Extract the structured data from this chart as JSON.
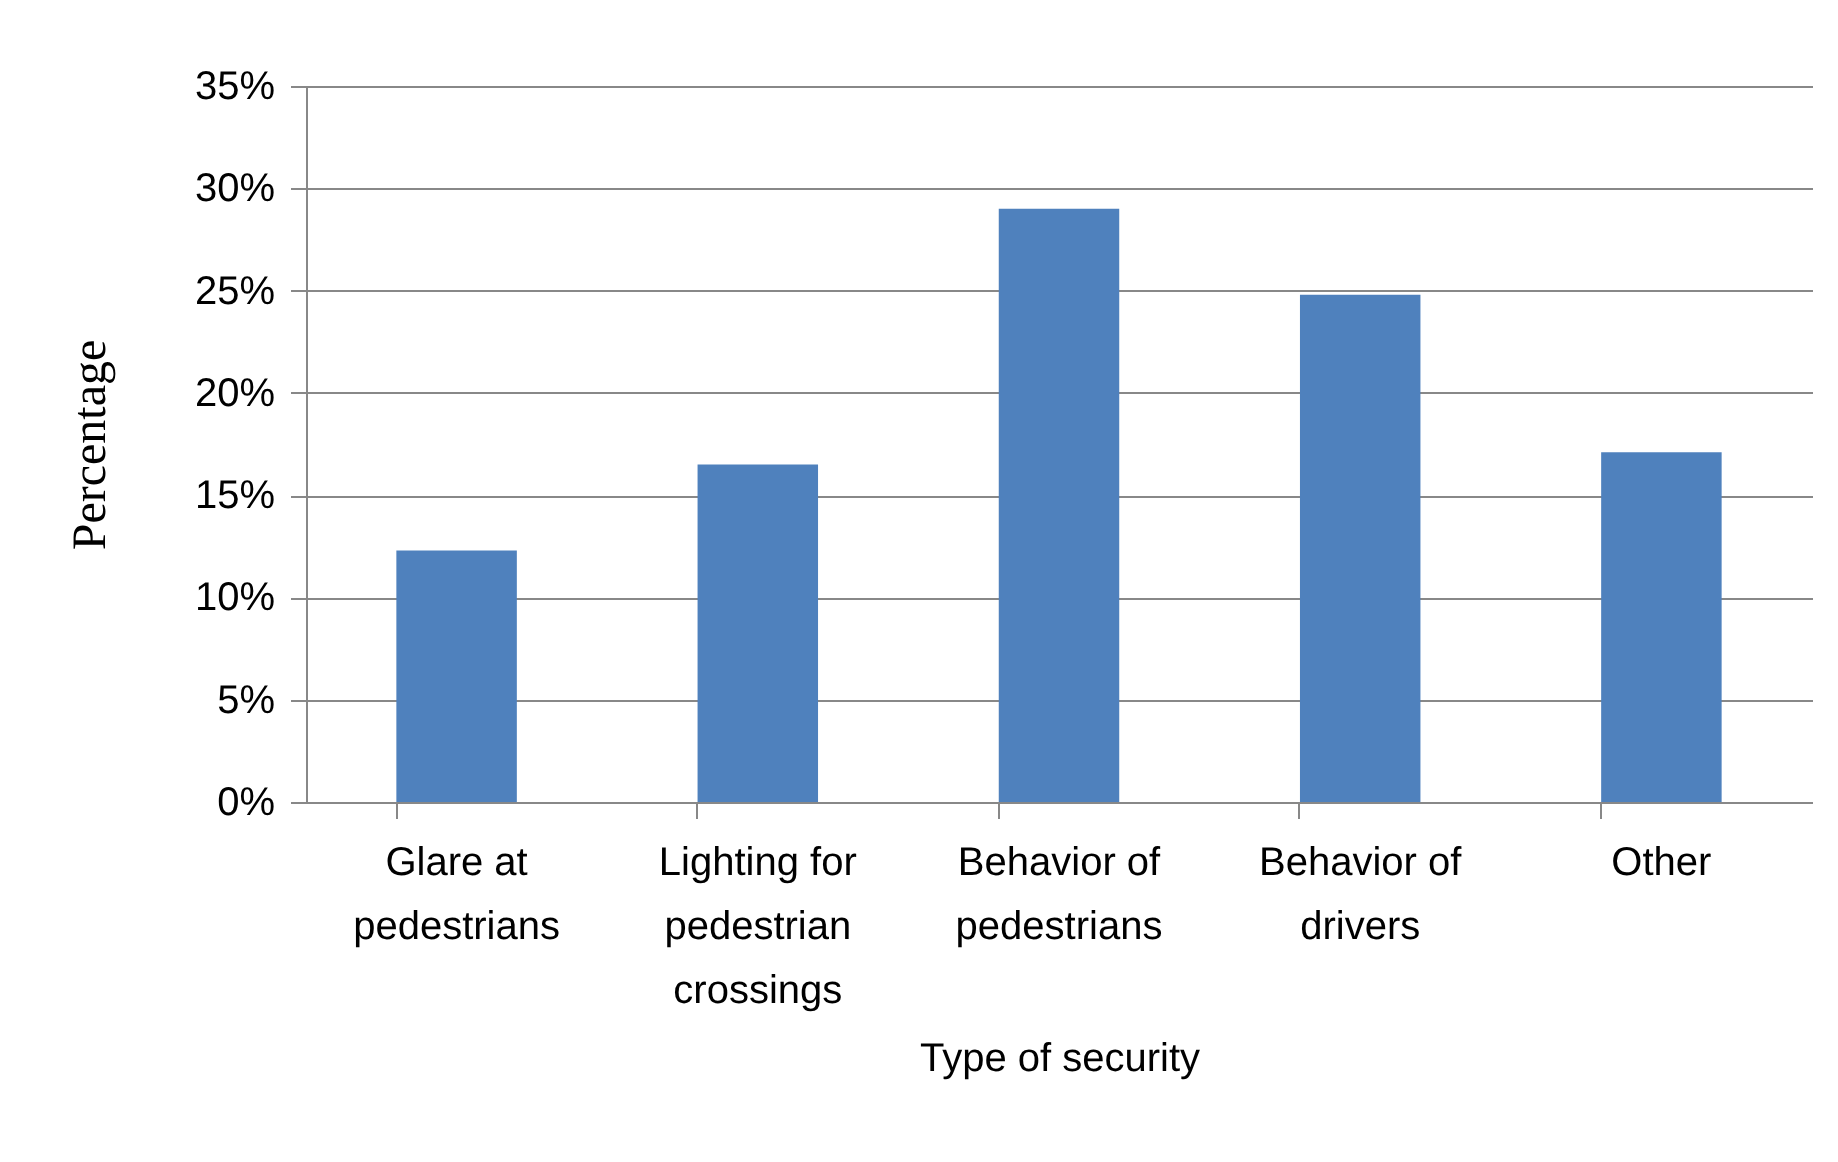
{
  "chart_data": {
    "type": "bar",
    "xlabel": "Type of security",
    "ylabel": "Percentage",
    "categories": [
      "Glare at pedestrians",
      "Lighting for pedestrian crossings",
      "Behavior of pedestrians",
      "Behavior of drivers",
      "Other"
    ],
    "values": [
      12.3,
      16.5,
      29.0,
      24.8,
      17.1
    ],
    "color": "#4f81bd",
    "ylim": [
      0,
      35
    ],
    "yticks": [
      {
        "value": 0,
        "label": "0%"
      },
      {
        "value": 5,
        "label": "5%"
      },
      {
        "value": 10,
        "label": "10%"
      },
      {
        "value": 15,
        "label": "15%"
      },
      {
        "value": 20,
        "label": "20%"
      },
      {
        "value": 25,
        "label": "25%"
      },
      {
        "value": 30,
        "label": "30%"
      },
      {
        "value": 35,
        "label": "35%"
      }
    ],
    "grid": "y"
  }
}
